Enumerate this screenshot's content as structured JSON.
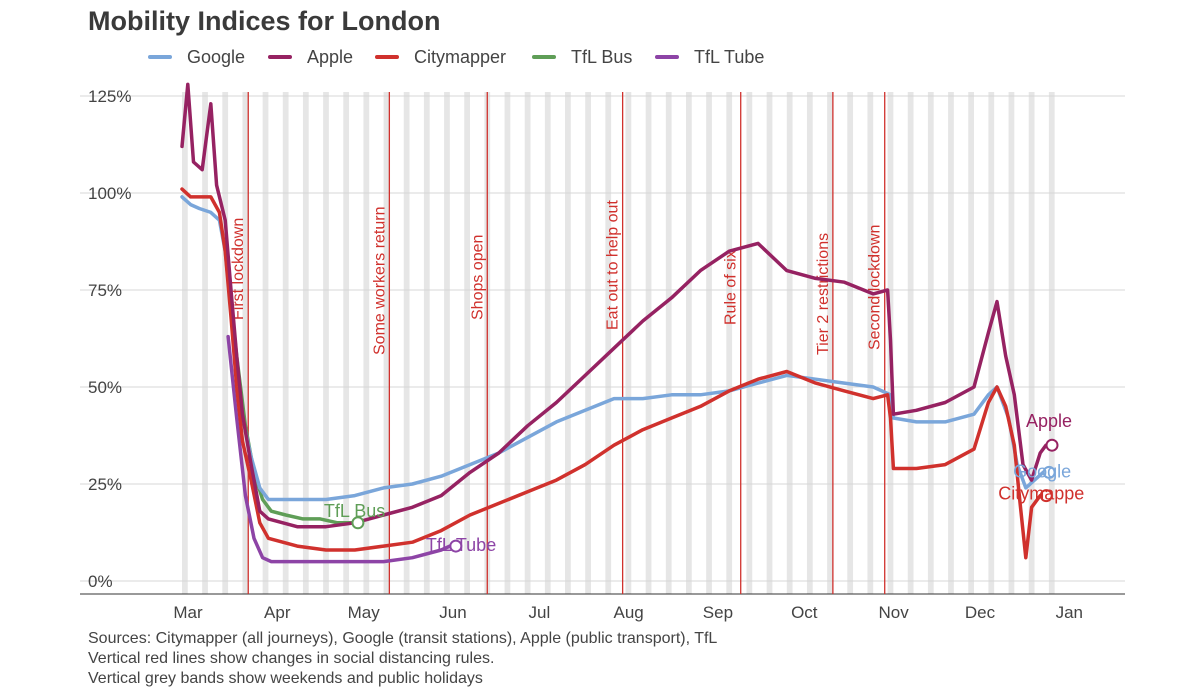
{
  "chart_data": {
    "type": "line",
    "title": "Mobility Indices for London",
    "xlabel": "",
    "ylabel": "",
    "ylim": [
      0,
      125
    ],
    "y_ticks": [
      "0%",
      "25%",
      "50%",
      "75%",
      "100%",
      "125%"
    ],
    "x_ticks": [
      "Mar",
      "Apr",
      "May",
      "Jun",
      "Jul",
      "Aug",
      "Sep",
      "Oct",
      "Nov",
      "Dec",
      "Jan"
    ],
    "legend_position": "top-left",
    "legend": [
      "Google",
      "Apple",
      "Citymapper",
      "TfL Bus",
      "TfL Tube"
    ],
    "series": [
      {
        "name": "Google",
        "color": "#7aa6da",
        "end_label": "Google",
        "points": [
          [
            0,
            99
          ],
          [
            3,
            97
          ],
          [
            6,
            96
          ],
          [
            10,
            95
          ],
          [
            13,
            93
          ],
          [
            15,
            85
          ],
          [
            17,
            70
          ],
          [
            19,
            55
          ],
          [
            21,
            42
          ],
          [
            24,
            32
          ],
          [
            27,
            24
          ],
          [
            30,
            21
          ],
          [
            40,
            21
          ],
          [
            50,
            21
          ],
          [
            60,
            22
          ],
          [
            70,
            24
          ],
          [
            80,
            25
          ],
          [
            90,
            27
          ],
          [
            100,
            30
          ],
          [
            110,
            33
          ],
          [
            120,
            37
          ],
          [
            130,
            41
          ],
          [
            140,
            44
          ],
          [
            150,
            47
          ],
          [
            160,
            47
          ],
          [
            170,
            48
          ],
          [
            180,
            48
          ],
          [
            190,
            49
          ],
          [
            200,
            51
          ],
          [
            210,
            53
          ],
          [
            220,
            52
          ],
          [
            230,
            51
          ],
          [
            240,
            50
          ],
          [
            246,
            48
          ],
          [
            247,
            42
          ],
          [
            255,
            41
          ],
          [
            265,
            41
          ],
          [
            275,
            43
          ],
          [
            280,
            48
          ],
          [
            283,
            50
          ],
          [
            287,
            42
          ],
          [
            290,
            30
          ],
          [
            293,
            24
          ],
          [
            296,
            26
          ],
          [
            299,
            28
          ]
        ]
      },
      {
        "name": "Apple",
        "color": "#962262",
        "end_label": "Apple",
        "points": [
          [
            0,
            112
          ],
          [
            2,
            128
          ],
          [
            4,
            108
          ],
          [
            7,
            106
          ],
          [
            10,
            123
          ],
          [
            12,
            102
          ],
          [
            15,
            93
          ],
          [
            17,
            75
          ],
          [
            19,
            58
          ],
          [
            21,
            43
          ],
          [
            24,
            30
          ],
          [
            27,
            18
          ],
          [
            30,
            16
          ],
          [
            40,
            14
          ],
          [
            50,
            14
          ],
          [
            60,
            15
          ],
          [
            70,
            17
          ],
          [
            80,
            19
          ],
          [
            90,
            22
          ],
          [
            100,
            28
          ],
          [
            110,
            33
          ],
          [
            120,
            40
          ],
          [
            130,
            46
          ],
          [
            140,
            53
          ],
          [
            150,
            60
          ],
          [
            160,
            67
          ],
          [
            170,
            73
          ],
          [
            180,
            80
          ],
          [
            190,
            85
          ],
          [
            200,
            87
          ],
          [
            210,
            80
          ],
          [
            220,
            78
          ],
          [
            230,
            77
          ],
          [
            240,
            74
          ],
          [
            245,
            75
          ],
          [
            246,
            62
          ],
          [
            247,
            43
          ],
          [
            255,
            44
          ],
          [
            265,
            46
          ],
          [
            275,
            50
          ],
          [
            280,
            64
          ],
          [
            283,
            72
          ],
          [
            286,
            58
          ],
          [
            289,
            48
          ],
          [
            292,
            30
          ],
          [
            295,
            26
          ],
          [
            298,
            33
          ],
          [
            300,
            35
          ]
        ]
      },
      {
        "name": "Citymapper",
        "color": "#d0312d",
        "end_label": "Citymappe",
        "points": [
          [
            0,
            101
          ],
          [
            3,
            99
          ],
          [
            6,
            99
          ],
          [
            10,
            99
          ],
          [
            13,
            95
          ],
          [
            15,
            85
          ],
          [
            17,
            68
          ],
          [
            19,
            50
          ],
          [
            21,
            36
          ],
          [
            24,
            26
          ],
          [
            27,
            15
          ],
          [
            30,
            11
          ],
          [
            40,
            9
          ],
          [
            50,
            8
          ],
          [
            60,
            8
          ],
          [
            70,
            9
          ],
          [
            80,
            10
          ],
          [
            90,
            13
          ],
          [
            100,
            17
          ],
          [
            110,
            20
          ],
          [
            120,
            23
          ],
          [
            130,
            26
          ],
          [
            140,
            30
          ],
          [
            150,
            35
          ],
          [
            160,
            39
          ],
          [
            170,
            42
          ],
          [
            180,
            45
          ],
          [
            190,
            49
          ],
          [
            200,
            52
          ],
          [
            210,
            54
          ],
          [
            220,
            51
          ],
          [
            230,
            49
          ],
          [
            240,
            47
          ],
          [
            245,
            48
          ],
          [
            246,
            42
          ],
          [
            247,
            29
          ],
          [
            255,
            29
          ],
          [
            265,
            30
          ],
          [
            275,
            34
          ],
          [
            280,
            46
          ],
          [
            283,
            50
          ],
          [
            286,
            45
          ],
          [
            289,
            35
          ],
          [
            291,
            20
          ],
          [
            293,
            6
          ],
          [
            295,
            19
          ],
          [
            298,
            22
          ]
        ]
      },
      {
        "name": "TfL Bus",
        "color": "#5f9e57",
        "end_label": "TfL Bus",
        "points": [
          [
            16,
            78
          ],
          [
            19,
            58
          ],
          [
            22,
            40
          ],
          [
            25,
            28
          ],
          [
            28,
            21
          ],
          [
            31,
            18
          ],
          [
            36,
            17
          ],
          [
            42,
            16
          ],
          [
            48,
            16
          ],
          [
            54,
            15
          ],
          [
            59,
            15
          ]
        ]
      },
      {
        "name": "TfL Tube",
        "color": "#8d44a6",
        "end_label": "TfL Tube",
        "points": [
          [
            16,
            63
          ],
          [
            19,
            42
          ],
          [
            22,
            22
          ],
          [
            25,
            11
          ],
          [
            28,
            6
          ],
          [
            31,
            5
          ],
          [
            40,
            5
          ],
          [
            50,
            5
          ],
          [
            60,
            5
          ],
          [
            70,
            5
          ],
          [
            80,
            6
          ],
          [
            90,
            8
          ],
          [
            93,
            9
          ]
        ]
      }
    ],
    "x_tick_days": [
      0,
      31,
      61,
      92,
      122,
      153,
      184,
      214,
      245,
      275,
      306
    ],
    "events": [
      {
        "label": "First lockdown",
        "day": 23
      },
      {
        "label": "Some workers return",
        "day": 72
      },
      {
        "label": "Shops open",
        "day": 106
      },
      {
        "label": "Eat out to help out",
        "day": 153
      },
      {
        "label": "Rule of six",
        "day": 194
      },
      {
        "label": "Tier 2 restrictions",
        "day": 226
      },
      {
        "label": "Second lockdown",
        "day": 244
      }
    ],
    "sources": [
      "Sources: Citymapper (all journeys), Google (transit stations), Apple (public transport), TfL",
      "Vertical red lines show changes in social distancing rules.",
      "Vertical grey bands show weekends and public holidays"
    ]
  }
}
